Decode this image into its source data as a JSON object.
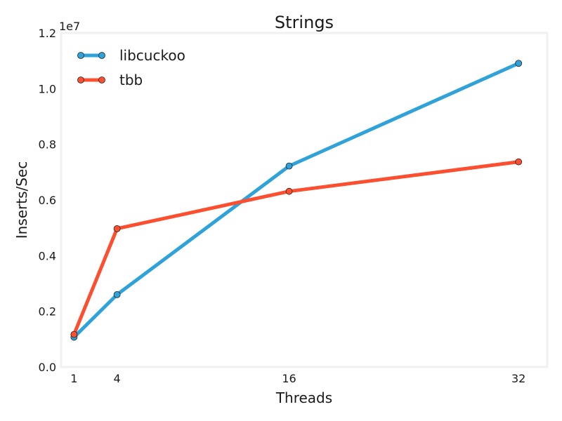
{
  "chart_data": {
    "type": "line",
    "title": "Strings",
    "xlabel": "Threads",
    "ylabel": "Inserts/Sec",
    "y_offset_label": "1e7",
    "x": [
      1,
      4,
      16,
      32
    ],
    "xticks": [
      "1",
      "4",
      "16",
      "32"
    ],
    "xlim": [
      0.1,
      34
    ],
    "ylim": [
      0,
      12000000
    ],
    "yticks": [
      0,
      2000000,
      4000000,
      6000000,
      8000000,
      10000000,
      12000000
    ],
    "ytick_labels": [
      "0.0",
      "0.2",
      "0.4",
      "0.6",
      "0.8",
      "1.0",
      "1.2"
    ],
    "grid": false,
    "legend_position": "top-left",
    "series": [
      {
        "name": "libcuckoo",
        "color": "#30a2da",
        "values": [
          1070000,
          2600000,
          7220000,
          10910000
        ]
      },
      {
        "name": "tbb",
        "color": "#fc4f30",
        "values": [
          1170000,
          4970000,
          6310000,
          7370000
        ]
      }
    ]
  }
}
